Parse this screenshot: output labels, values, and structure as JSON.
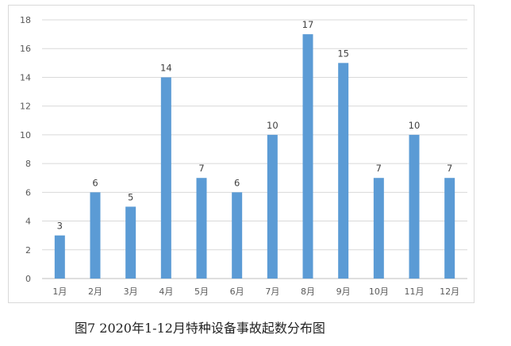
{
  "chart_data": {
    "type": "bar",
    "categories": [
      "1月",
      "2月",
      "3月",
      "4月",
      "5月",
      "6月",
      "7月",
      "8月",
      "9月",
      "10月",
      "11月",
      "12月"
    ],
    "values": [
      3,
      6,
      5,
      14,
      7,
      6,
      10,
      17,
      15,
      7,
      10,
      7
    ],
    "ylim": [
      0,
      18
    ],
    "yticks": [
      0,
      2,
      4,
      6,
      8,
      10,
      12,
      14,
      16,
      18
    ],
    "grid": true,
    "legend": "none",
    "bar_color": "#5b9bd5",
    "grid_color": "#d9d9d9",
    "title": "",
    "xlabel": "",
    "ylabel": ""
  },
  "caption": "图7 2020年1-12月特种设备事故起数分布图"
}
